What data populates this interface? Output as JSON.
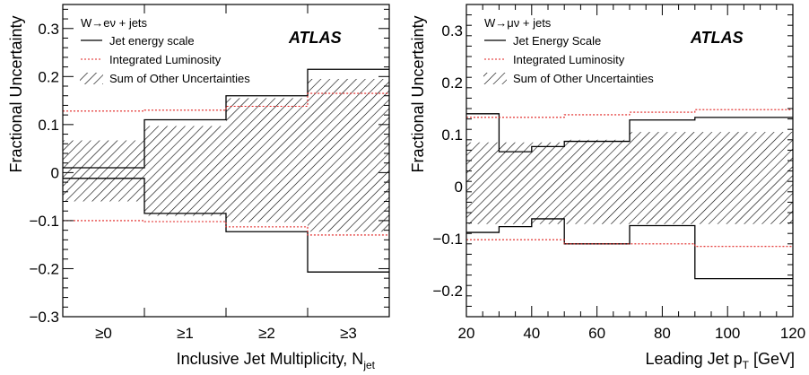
{
  "chart_data": [
    {
      "type": "line",
      "step": true,
      "x_type": "category",
      "categories": [
        "≥0",
        "≥1",
        "≥2",
        "≥3"
      ],
      "xlabel": "Inclusive Jet Multiplicity, N",
      "xlabel_sub": "jet",
      "ylabel": "Fractional Uncertainty",
      "ylim": [
        -0.3,
        0.35
      ],
      "yticks": [
        -0.3,
        -0.2,
        -0.1,
        0,
        0.1,
        0.2,
        0.3
      ],
      "ytick_labels": [
        "−0.3",
        "−0.2",
        "−0.1",
        "0",
        "0.1",
        "0.2",
        "0.3"
      ],
      "process_label": "W→eν + jets",
      "atlas_label": "ATLAS",
      "legend_position": "top-left",
      "series": [
        {
          "name": "Jet energy scale",
          "style": "solid",
          "color": "#000000",
          "up": [
            0.01,
            0.11,
            0.16,
            0.215
          ],
          "down": [
            -0.012,
            -0.085,
            -0.123,
            -0.207
          ]
        },
        {
          "name": "Integrated Luminosity",
          "style": "dotted",
          "color": "#e0201f",
          "up": [
            0.128,
            0.13,
            0.138,
            0.165
          ],
          "down": [
            -0.1,
            -0.102,
            -0.113,
            -0.13
          ]
        },
        {
          "name": "Sum of Other Uncertainties",
          "style": "hatched",
          "color": "#000000",
          "up": [
            0.067,
            0.097,
            0.155,
            0.195
          ],
          "down": [
            -0.06,
            -0.09,
            -0.103,
            -0.123
          ]
        }
      ]
    },
    {
      "type": "line",
      "step": true,
      "x_type": "numeric",
      "bin_edges": [
        20,
        30,
        40,
        50,
        70,
        90,
        120
      ],
      "xlim": [
        20,
        120
      ],
      "xticks": [
        20,
        40,
        60,
        80,
        100,
        120
      ],
      "xlabel": "Leading Jet p",
      "xlabel_sub": "T",
      "xlabel_unit": " [GeV]",
      "ylabel": "Fractional Uncertainty",
      "ylim": [
        -0.25,
        0.35
      ],
      "yticks": [
        -0.2,
        -0.1,
        0,
        0.1,
        0.2,
        0.3
      ],
      "ytick_labels": [
        "−0.2",
        "−0.1",
        "0",
        "0.1",
        "0.2",
        "0.3"
      ],
      "process_label": "W→μν + jets",
      "atlas_label": "ATLAS",
      "legend_position": "top-left",
      "series": [
        {
          "name": "Jet Energy Scale",
          "style": "solid",
          "color": "#000000",
          "up": [
            0.14,
            0.067,
            0.077,
            0.087,
            0.128,
            0.133
          ],
          "down": [
            -0.088,
            -0.077,
            -0.062,
            -0.11,
            -0.075,
            -0.177
          ]
        },
        {
          "name": "Integrated Luminosity",
          "style": "dotted",
          "color": "#e0201f",
          "up": [
            0.133,
            0.133,
            0.133,
            0.138,
            0.143,
            0.148
          ],
          "down": [
            -0.102,
            -0.102,
            -0.102,
            -0.11,
            -0.11,
            -0.115
          ]
        },
        {
          "name": "Sum of Other Uncertainties",
          "style": "hatched",
          "color": "#000000",
          "up": [
            0.085,
            0.085,
            0.085,
            0.09,
            0.105,
            0.105
          ],
          "down": [
            -0.072,
            -0.072,
            -0.072,
            -0.072,
            -0.072,
            -0.072
          ]
        }
      ]
    }
  ]
}
